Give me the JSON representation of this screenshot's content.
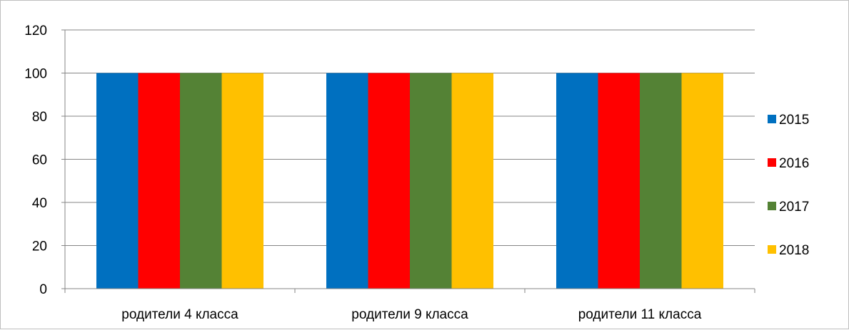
{
  "chart_data": {
    "type": "bar",
    "categories": [
      "родители 4 класса",
      "родители 9 класса",
      "родители 11 класса"
    ],
    "series": [
      {
        "name": "2015",
        "color": "#0070C0",
        "values": [
          100,
          100,
          100
        ]
      },
      {
        "name": "2016",
        "color": "#FF0000",
        "values": [
          100,
          100,
          100
        ]
      },
      {
        "name": "2017",
        "color": "#548235",
        "values": [
          100,
          100,
          100
        ]
      },
      {
        "name": "2018",
        "color": "#FFC000",
        "values": [
          100,
          100,
          100
        ]
      }
    ],
    "title": "",
    "xlabel": "",
    "ylabel": "",
    "ylim": [
      0,
      120
    ],
    "yticks": [
      "0",
      "20",
      "40",
      "60",
      "80",
      "100",
      "120"
    ],
    "grid": true,
    "legend_position": "right"
  }
}
